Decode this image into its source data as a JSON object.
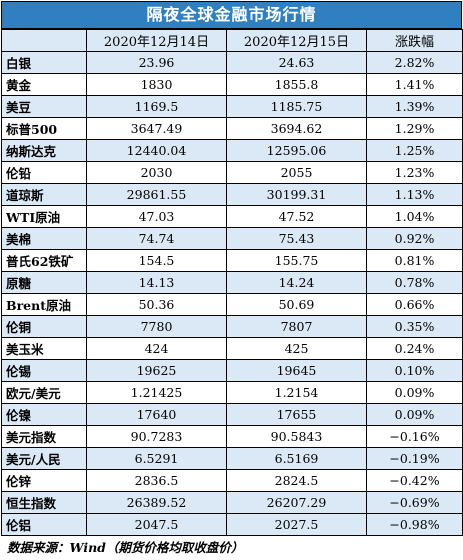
{
  "title": "隔夜全球金融市场行情",
  "headers": [
    "",
    "2020年12月14日",
    "2020年12月15日",
    "涨跌幅"
  ],
  "rows": [
    [
      "白银",
      "23.96",
      "24.63",
      "2.82%"
    ],
    [
      "黄金",
      "1830",
      "1855.8",
      "1.41%"
    ],
    [
      "美豆",
      "1169.5",
      "1185.75",
      "1.39%"
    ],
    [
      "标普500",
      "3647.49",
      "3694.62",
      "1.29%"
    ],
    [
      "纳斯达克",
      "12440.04",
      "12595.06",
      "1.25%"
    ],
    [
      "伦铅",
      "2030",
      "2055",
      "1.23%"
    ],
    [
      "道琼斯",
      "29861.55",
      "30199.31",
      "1.13%"
    ],
    [
      "WTI原油",
      "47.03",
      "47.52",
      "1.04%"
    ],
    [
      "美棉",
      "74.74",
      "75.43",
      "0.92%"
    ],
    [
      "普氏62铁矿",
      "154.5",
      "155.75",
      "0.81%"
    ],
    [
      "原糖",
      "14.13",
      "14.24",
      "0.78%"
    ],
    [
      "Brent原油",
      "50.36",
      "50.69",
      "0.66%"
    ],
    [
      "伦铜",
      "7780",
      "7807",
      "0.35%"
    ],
    [
      "美玉米",
      "424",
      "425",
      "0.24%"
    ],
    [
      "伦锡",
      "19625",
      "19645",
      "0.10%"
    ],
    [
      "欧元/美元",
      "1.21425",
      "1.2154",
      "0.09%"
    ],
    [
      "伦镍",
      "17640",
      "17655",
      "0.09%"
    ],
    [
      "美元指数",
      "90.7283",
      "90.5843",
      "−0.16%"
    ],
    [
      "美元/人民",
      "6.5291",
      "6.5169",
      "−0.19%"
    ],
    [
      "伦锌",
      "2836.5",
      "2824.5",
      "−0.42%"
    ],
    [
      "恒生指数",
      "26389.52",
      "26207.29",
      "−0.69%"
    ],
    [
      "伦铝",
      "2047.5",
      "2027.5",
      "−0.98%"
    ]
  ],
  "footer": "数据来源：Wind（期货价格均取收盘价）",
  "colors": {
    "title_bg": "#2f7fc1",
    "band": "#dbe9f6"
  }
}
